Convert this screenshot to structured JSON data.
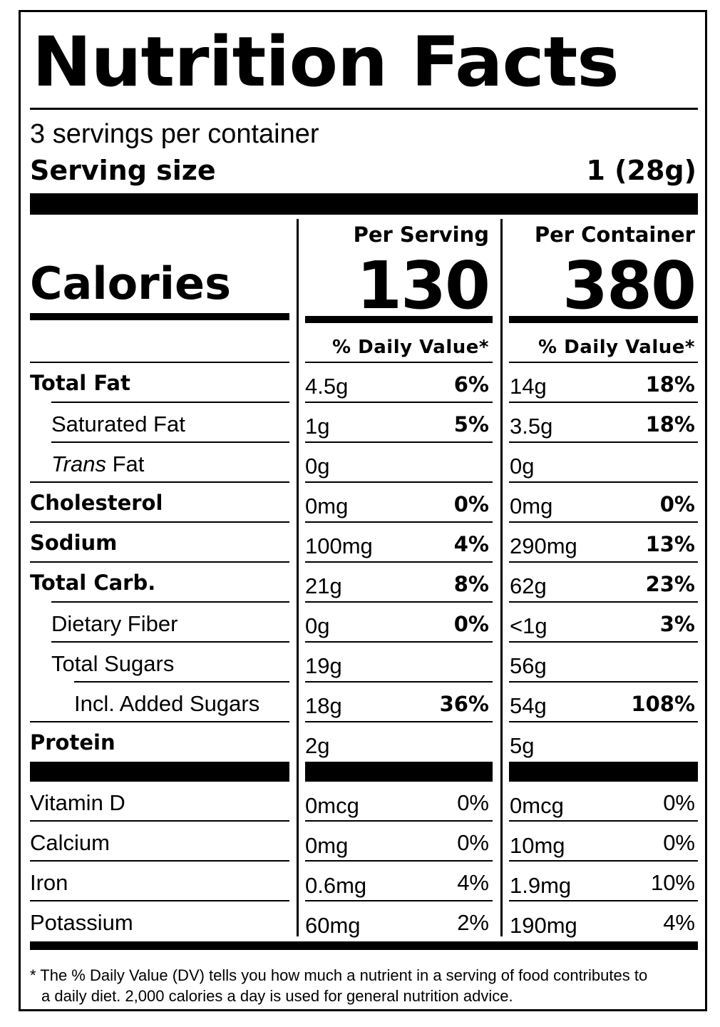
{
  "title": "Nutrition Facts",
  "servings_per_container": "3 servings per container",
  "serving_size": {
    "label": "Serving size",
    "value": "1 (28g)"
  },
  "columns": [
    {
      "heading": "Per Serving",
      "calories": "130",
      "dv_heading": "% Daily Value*"
    },
    {
      "heading": "Per Container",
      "calories": "380",
      "dv_heading": "% Daily Value*"
    }
  ],
  "calories_label": "Calories",
  "nutrients": [
    {
      "name": "Total Fat",
      "bold": true,
      "indent": 0,
      "serving": {
        "amount": "4.5g",
        "dv": "6%"
      },
      "container": {
        "amount": "14g",
        "dv": "18%"
      }
    },
    {
      "name": "Saturated Fat",
      "bold": false,
      "indent": 1,
      "serving": {
        "amount": "1g",
        "dv": "5%"
      },
      "container": {
        "amount": "3.5g",
        "dv": "18%"
      }
    },
    {
      "name_italic": "Trans",
      "name": " Fat",
      "bold": false,
      "indent": 1,
      "serving": {
        "amount": "0g",
        "dv": ""
      },
      "container": {
        "amount": "0g",
        "dv": ""
      }
    },
    {
      "name": "Cholesterol",
      "bold": true,
      "indent": 0,
      "serving": {
        "amount": "0mg",
        "dv": "0%"
      },
      "container": {
        "amount": "0mg",
        "dv": "0%"
      }
    },
    {
      "name": "Sodium",
      "bold": true,
      "indent": 0,
      "serving": {
        "amount": "100mg",
        "dv": "4%"
      },
      "container": {
        "amount": "290mg",
        "dv": "13%"
      }
    },
    {
      "name": "Total Carb.",
      "bold": true,
      "indent": 0,
      "serving": {
        "amount": "21g",
        "dv": "8%"
      },
      "container": {
        "amount": "62g",
        "dv": "23%"
      }
    },
    {
      "name": "Dietary Fiber",
      "bold": false,
      "indent": 1,
      "serving": {
        "amount": "0g",
        "dv": "0%"
      },
      "container": {
        "amount": "<1g",
        "dv": "3%"
      }
    },
    {
      "name": "Total Sugars",
      "bold": false,
      "indent": 1,
      "serving": {
        "amount": "19g",
        "dv": ""
      },
      "container": {
        "amount": "56g",
        "dv": ""
      }
    },
    {
      "name": "Incl. Added Sugars",
      "bold": false,
      "indent": 2,
      "serving": {
        "amount": "18g",
        "dv": "36%"
      },
      "container": {
        "amount": "54g",
        "dv": "108%"
      }
    },
    {
      "name": "Protein",
      "bold": true,
      "indent": 0,
      "serving": {
        "amount": "2g",
        "dv": ""
      },
      "container": {
        "amount": "5g",
        "dv": ""
      }
    }
  ],
  "vitamins": [
    {
      "name": "Vitamin D",
      "serving": {
        "amount": "0mcg",
        "dv": "0%"
      },
      "container": {
        "amount": "0mcg",
        "dv": "0%"
      }
    },
    {
      "name": "Calcium",
      "serving": {
        "amount": "0mg",
        "dv": "0%"
      },
      "container": {
        "amount": "10mg",
        "dv": "0%"
      }
    },
    {
      "name": "Iron",
      "serving": {
        "amount": "0.6mg",
        "dv": "4%"
      },
      "container": {
        "amount": "1.9mg",
        "dv": "10%"
      }
    },
    {
      "name": "Potassium",
      "serving": {
        "amount": "60mg",
        "dv": "2%"
      },
      "container": {
        "amount": "190mg",
        "dv": "4%"
      }
    }
  ],
  "footnote": {
    "line1": "* The % Daily Value (DV) tells you how much a nutrient in a serving of food contributes to",
    "line2": "a daily diet. 2,000 calories a day is used for general nutrition advice."
  }
}
